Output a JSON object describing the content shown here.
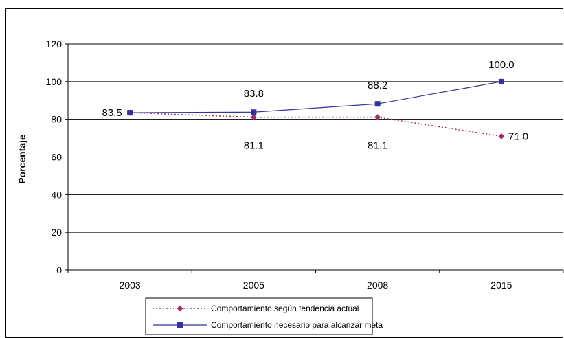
{
  "chart_data": {
    "type": "line",
    "categories": [
      "2003",
      "2005",
      "2008",
      "2015"
    ],
    "ylabel": "Porcentaje",
    "xlabel": "",
    "ylim": [
      0,
      120
    ],
    "yticks": [
      0,
      20,
      40,
      60,
      80,
      100,
      120
    ],
    "grid": true,
    "legend_position": "bottom",
    "series": [
      {
        "name": "Comportamiento según tendencia actual",
        "values": [
          83.5,
          81.1,
          81.1,
          71.0
        ],
        "labels": [
          "83.5",
          "81.1",
          "81.1",
          "71.0"
        ],
        "color": "#993366",
        "line_style": "dotted",
        "marker": "diamond"
      },
      {
        "name": "Comportamiento necesario para alcanzar meta",
        "values": [
          83.5,
          83.8,
          88.2,
          100.0
        ],
        "labels": [
          "",
          "83.8",
          "88.2",
          "100.0"
        ],
        "color": "#333399",
        "line_style": "solid",
        "marker": "square"
      }
    ]
  }
}
